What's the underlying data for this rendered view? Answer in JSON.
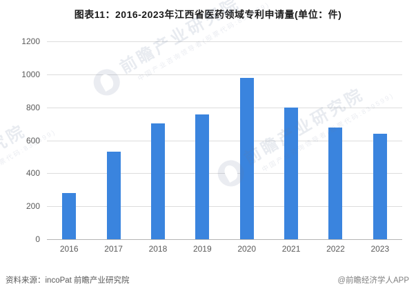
{
  "title": "图表11：2016-2023年江西省医药领域专利申请量(单位：件)",
  "chart_data": {
    "type": "bar",
    "title": "图表11：2016-2023年江西省医药领域专利申请量(单位：件)",
    "categories": [
      "2016",
      "2017",
      "2018",
      "2019",
      "2020",
      "2021",
      "2022",
      "2023"
    ],
    "values": [
      281,
      533,
      702,
      755,
      977,
      800,
      677,
      640
    ],
    "unit": "件",
    "xlabel": "",
    "ylabel": "",
    "ylim": [
      0,
      1200
    ],
    "yticks": [
      0,
      200,
      400,
      600,
      800,
      1000,
      1200
    ],
    "grid": true,
    "legend": false,
    "bar_color": "#3A84DE"
  },
  "footer": {
    "source": "资料来源：incoPat 前瞻产业研究院",
    "credit": "@前瞻经济学人APP"
  },
  "watermark": {
    "brand": "前瞻产业研究院",
    "tagline": "中国产业咨询领导者(股票代码:839599)"
  },
  "colors": {
    "bar": "#3A84DE",
    "gridline": "#DCDCDC",
    "axis_line": "#B3B3B3",
    "tick_text": "#595959",
    "title_text": "#1A1A1A"
  }
}
